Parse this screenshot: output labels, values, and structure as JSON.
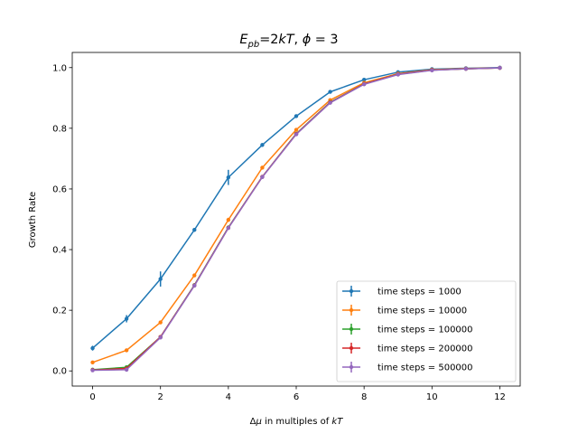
{
  "chart_data": {
    "type": "line",
    "title_main": "E",
    "title_sub": "pb",
    "title_rest_1": "=2",
    "title_kT": "kT",
    "title_rest_2": ", ",
    "title_phi": "ϕ",
    "title_rest_3": " = 3",
    "xlabel_delta": "Δ",
    "xlabel_mu": "μ",
    "xlabel_rest": " in multiples of ",
    "xlabel_kT": "kT",
    "ylabel": "Growth Rate",
    "xlim": [
      -0.6,
      12.6
    ],
    "ylim": [
      -0.05,
      1.05
    ],
    "xticks": [
      0,
      2,
      4,
      6,
      8,
      10,
      12
    ],
    "yticks": [
      0.0,
      0.2,
      0.4,
      0.6,
      0.8,
      1.0
    ],
    "ytick_labels": [
      "0.0",
      "0.2",
      "0.4",
      "0.6",
      "0.8",
      "1.0"
    ],
    "legend_position": "lower-right",
    "x": [
      0,
      1,
      2,
      3,
      4,
      5,
      6,
      7,
      8,
      9,
      10,
      11,
      12
    ],
    "series": [
      {
        "name": "time steps = 1000",
        "color": "#1f77b4",
        "values": [
          0.075,
          0.172,
          0.303,
          0.465,
          0.638,
          0.745,
          0.84,
          0.92,
          0.96,
          0.985,
          0.995,
          0.998,
          1.0
        ],
        "errors": [
          0.008,
          0.012,
          0.025,
          0.006,
          0.025,
          0.006,
          0.005,
          0.004,
          0.003,
          0.002,
          0.002,
          0.001,
          0.001
        ]
      },
      {
        "name": "time steps = 10000",
        "color": "#ff7f0e",
        "values": [
          0.028,
          0.068,
          0.16,
          0.315,
          0.498,
          0.67,
          0.795,
          0.893,
          0.95,
          0.98,
          0.993,
          0.997,
          0.999
        ],
        "errors": [
          0.003,
          0.004,
          0.005,
          0.006,
          0.007,
          0.006,
          0.005,
          0.004,
          0.003,
          0.002,
          0.001,
          0.001,
          0.001
        ]
      },
      {
        "name": "time steps = 100000",
        "color": "#2ca02c",
        "values": [
          0.004,
          0.012,
          0.112,
          0.283,
          0.473,
          0.64,
          0.782,
          0.886,
          0.946,
          0.978,
          0.992,
          0.996,
          0.999
        ],
        "errors": [
          0.002,
          0.002,
          0.004,
          0.004,
          0.005,
          0.005,
          0.004,
          0.003,
          0.002,
          0.002,
          0.001,
          0.001,
          0.001
        ]
      },
      {
        "name": "time steps = 200000",
        "color": "#d62728",
        "values": [
          0.003,
          0.008,
          0.112,
          0.282,
          0.472,
          0.64,
          0.781,
          0.885,
          0.946,
          0.978,
          0.992,
          0.996,
          0.999
        ],
        "errors": [
          0.002,
          0.002,
          0.004,
          0.004,
          0.005,
          0.005,
          0.004,
          0.003,
          0.002,
          0.002,
          0.001,
          0.001,
          0.001
        ]
      },
      {
        "name": "time steps = 500000",
        "color": "#9467bd",
        "values": [
          0.002,
          0.004,
          0.11,
          0.281,
          0.471,
          0.639,
          0.78,
          0.884,
          0.945,
          0.977,
          0.991,
          0.996,
          0.999
        ],
        "errors": [
          0.002,
          0.002,
          0.004,
          0.004,
          0.005,
          0.005,
          0.004,
          0.003,
          0.002,
          0.002,
          0.001,
          0.001,
          0.001
        ]
      }
    ]
  }
}
